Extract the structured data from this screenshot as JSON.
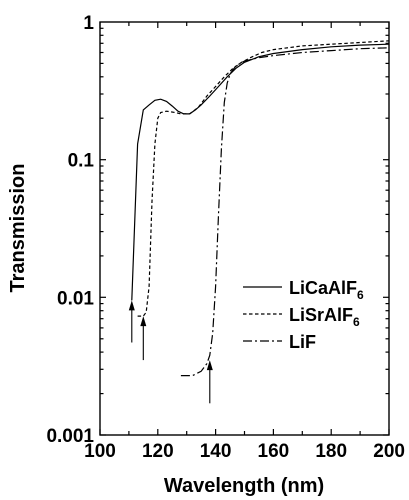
{
  "chart_data": {
    "type": "line",
    "title": "",
    "xlabel": "Wavelength (nm)",
    "ylabel": "Transmission",
    "xlim": [
      100,
      200
    ],
    "ylim": [
      0.001,
      1
    ],
    "yscale": "log",
    "grid": false,
    "legend_position": "right",
    "x_ticks": [
      100,
      110,
      120,
      130,
      140,
      150,
      160,
      170,
      180,
      190,
      200
    ],
    "x_tick_labels": [
      "100",
      "120",
      "140",
      "160",
      "180",
      "200"
    ],
    "y_tick_labels": [
      "0.001",
      "0.01",
      "0.1",
      "1"
    ],
    "series": [
      {
        "name_main": "LiCaAlF",
        "name_sub": "6",
        "dash": "solid",
        "points": [
          [
            111,
            0.0095
          ],
          [
            113,
            0.13
          ],
          [
            115,
            0.23
          ],
          [
            117,
            0.25
          ],
          [
            119,
            0.27
          ],
          [
            121,
            0.275
          ],
          [
            123,
            0.265
          ],
          [
            125,
            0.245
          ],
          [
            127,
            0.225
          ],
          [
            129,
            0.215
          ],
          [
            131,
            0.215
          ],
          [
            133,
            0.23
          ],
          [
            135,
            0.25
          ],
          [
            138,
            0.29
          ],
          [
            141,
            0.34
          ],
          [
            144,
            0.4
          ],
          [
            147,
            0.46
          ],
          [
            150,
            0.51
          ],
          [
            155,
            0.56
          ],
          [
            160,
            0.59
          ],
          [
            170,
            0.63
          ],
          [
            180,
            0.66
          ],
          [
            190,
            0.68
          ],
          [
            200,
            0.69
          ]
        ]
      },
      {
        "name_main": "LiSrAlF",
        "name_sub": "6",
        "dash": "dashed",
        "points": [
          [
            113,
            0.0073
          ],
          [
            115,
            0.0073
          ],
          [
            116,
            0.0078
          ],
          [
            117,
            0.012
          ],
          [
            118,
            0.05
          ],
          [
            119,
            0.13
          ],
          [
            120,
            0.2
          ],
          [
            121,
            0.22
          ],
          [
            123,
            0.225
          ],
          [
            126,
            0.22
          ],
          [
            128,
            0.215
          ],
          [
            131,
            0.215
          ],
          [
            134,
            0.24
          ],
          [
            137,
            0.29
          ],
          [
            140,
            0.34
          ],
          [
            143,
            0.4
          ],
          [
            146,
            0.46
          ],
          [
            149,
            0.51
          ],
          [
            152,
            0.55
          ],
          [
            156,
            0.6
          ],
          [
            160,
            0.63
          ],
          [
            170,
            0.67
          ],
          [
            180,
            0.69
          ],
          [
            190,
            0.71
          ],
          [
            200,
            0.73
          ]
        ]
      },
      {
        "name_main": "LiF",
        "name_sub": "",
        "dash": "dashdot",
        "points": [
          [
            128,
            0.0027
          ],
          [
            132,
            0.0027
          ],
          [
            135,
            0.0029
          ],
          [
            137,
            0.0033
          ],
          [
            138,
            0.0038
          ],
          [
            139,
            0.0055
          ],
          [
            140,
            0.012
          ],
          [
            141,
            0.04
          ],
          [
            142,
            0.12
          ],
          [
            143,
            0.26
          ],
          [
            144,
            0.36
          ],
          [
            145,
            0.42
          ],
          [
            147,
            0.48
          ],
          [
            150,
            0.52
          ],
          [
            155,
            0.55
          ],
          [
            160,
            0.57
          ],
          [
            170,
            0.6
          ],
          [
            180,
            0.62
          ],
          [
            190,
            0.64
          ],
          [
            200,
            0.65
          ]
        ]
      }
    ],
    "arrows": [
      [
        111,
        0.0047,
        0.0095
      ],
      [
        115,
        0.0035,
        0.0073
      ],
      [
        138,
        0.0017,
        0.0035
      ]
    ]
  }
}
